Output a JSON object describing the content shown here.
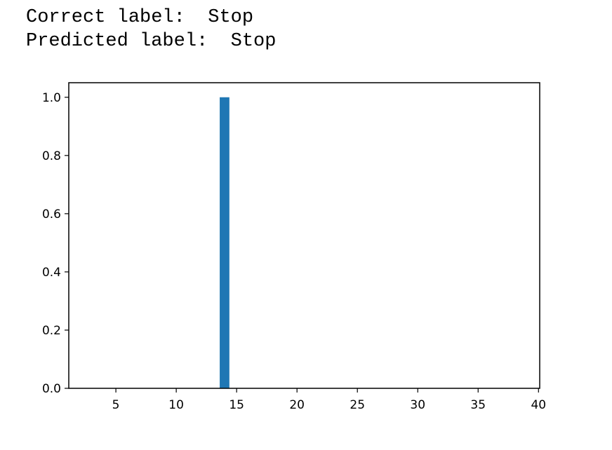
{
  "output": {
    "correct_label_prefix": "Correct label:  ",
    "correct_label_value": "Stop",
    "predicted_label_prefix": "Predicted label:  ",
    "predicted_label_value": "Stop"
  },
  "colors": {
    "bar": "#1f77b4",
    "axes": "#000000",
    "background": "#ffffff"
  },
  "chart_data": {
    "type": "bar",
    "x": [
      14
    ],
    "values": [
      1.0
    ],
    "bar_width": 0.8,
    "xlim": [
      1.1,
      40.1
    ],
    "ylim": [
      0.0,
      1.05
    ],
    "xticks": [
      5,
      10,
      15,
      20,
      25,
      30,
      35,
      40
    ],
    "yticks": [
      0.0,
      0.2,
      0.4,
      0.6,
      0.8,
      1.0
    ],
    "xtick_labels": [
      "5",
      "10",
      "15",
      "20",
      "25",
      "30",
      "35",
      "40"
    ],
    "ytick_labels": [
      "0.0",
      "0.2",
      "0.4",
      "0.6",
      "0.8",
      "1.0"
    ],
    "title": "",
    "xlabel": "",
    "ylabel": "",
    "grid": false
  }
}
